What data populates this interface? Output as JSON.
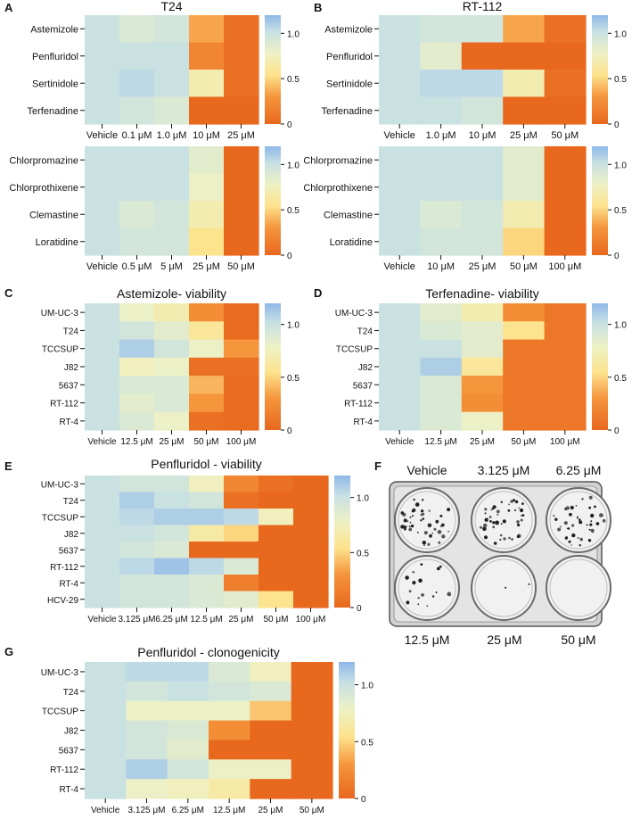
{
  "figure": {
    "panel_letters": [
      "A",
      "B",
      "C",
      "D",
      "E",
      "F",
      "G"
    ]
  },
  "colorscale": {
    "stops": [
      "#e8681e",
      "#f5953c",
      "#fde28c",
      "#eef1c4",
      "#c6e0e4",
      "#8fb8e8"
    ],
    "ticks_1": [
      "1.0",
      "0.5",
      "0"
    ],
    "ticks_2": [
      "1.0",
      "0.5",
      "0"
    ]
  },
  "photo_panel": {
    "labels_top": [
      "Vehicle",
      "3.125 μM",
      "6.25 μM"
    ],
    "labels_bottom": [
      "12.5 μM",
      "25 μM",
      "50 μM"
    ],
    "colony_density": [
      1.0,
      0.95,
      0.9,
      0.35,
      0.05,
      0.0
    ]
  },
  "chart_data": [
    {
      "panel": "A",
      "type": "heatmap",
      "title": "T24",
      "rows": [
        "Astemizole",
        "Penfluridol",
        "Sertinidole",
        "Terfenadine"
      ],
      "columns": [
        "Vehicle",
        "0.1 μM",
        "1.0 μM",
        "10 μM",
        "25 μM"
      ],
      "values": [
        [
          1.0,
          0.9,
          0.95,
          0.35,
          0.05
        ],
        [
          1.0,
          1.0,
          1.0,
          0.2,
          0.05
        ],
        [
          1.0,
          1.05,
          1.0,
          0.7,
          0.05
        ],
        [
          1.0,
          0.95,
          0.9,
          0.0,
          0.0
        ]
      ],
      "zlim": [
        0,
        1.2
      ],
      "colorbar_ticks": [
        "1.0",
        "0.5",
        "0"
      ]
    },
    {
      "panel": "A2",
      "type": "heatmap",
      "title": "",
      "rows": [
        "Chlorpromazine",
        "Chlorprothixene",
        "Clemastine",
        "Loratidine"
      ],
      "columns": [
        "Vehicle",
        "0.5 μM",
        "5 μM",
        "25 μM",
        "50 μM"
      ],
      "values": [
        [
          1.0,
          1.0,
          1.0,
          0.85,
          0.0
        ],
        [
          1.0,
          1.0,
          1.0,
          0.8,
          0.0
        ],
        [
          1.0,
          0.9,
          0.95,
          0.7,
          0.0
        ],
        [
          1.0,
          0.95,
          0.95,
          0.55,
          0.0
        ]
      ],
      "zlim": [
        0,
        1.2
      ],
      "colorbar_ticks": [
        "1.0",
        "0.5",
        "0"
      ]
    },
    {
      "panel": "B",
      "type": "heatmap",
      "title": "RT-112",
      "rows": [
        "Astemizole",
        "Penfluridol",
        "Sertinidole",
        "Terfenadine"
      ],
      "columns": [
        "Vehicle",
        "1.0 μM",
        "10 μM",
        "25 μM",
        "50 μM"
      ],
      "values": [
        [
          1.0,
          0.95,
          0.95,
          0.35,
          0.05
        ],
        [
          1.0,
          0.85,
          0.0,
          0.0,
          0.0
        ],
        [
          1.0,
          1.05,
          1.05,
          0.7,
          0.05
        ],
        [
          1.0,
          1.0,
          0.95,
          0.0,
          0.0
        ]
      ],
      "zlim": [
        0,
        1.2
      ],
      "colorbar_ticks": [
        "1.0",
        "0.5",
        "0"
      ]
    },
    {
      "panel": "B2",
      "type": "heatmap",
      "title": "",
      "rows": [
        "Chlorpromazine",
        "Chlorprothixene",
        "Clemastine",
        "Loratidine"
      ],
      "columns": [
        "Vehicle",
        "10 μM",
        "25 μM",
        "50 μM",
        "100 μM"
      ],
      "values": [
        [
          1.0,
          1.0,
          1.0,
          0.85,
          0.0
        ],
        [
          1.0,
          1.0,
          1.0,
          0.85,
          0.0
        ],
        [
          1.0,
          0.9,
          0.95,
          0.7,
          0.0
        ],
        [
          1.0,
          0.95,
          0.95,
          0.5,
          0.0
        ]
      ],
      "zlim": [
        0,
        1.2
      ],
      "colorbar_ticks": [
        "1.0",
        "0.5",
        "0"
      ]
    },
    {
      "panel": "C",
      "type": "heatmap",
      "title": "Astemizole- viability",
      "rows": [
        "UM-UC-3",
        "T24",
        "TCCSUP",
        "J82",
        "5637",
        "RT-112",
        "RT-4"
      ],
      "columns": [
        "Vehicle",
        "12.5 μM",
        "25 μM",
        "50 μM",
        "100 μM"
      ],
      "values": [
        [
          1.0,
          0.8,
          0.7,
          0.25,
          0.02
        ],
        [
          1.0,
          0.95,
          0.85,
          0.6,
          0.02
        ],
        [
          1.0,
          1.1,
          0.95,
          0.8,
          0.3
        ],
        [
          1.0,
          0.75,
          0.8,
          0.05,
          0.05
        ],
        [
          1.0,
          0.9,
          0.9,
          0.4,
          0.02
        ],
        [
          1.0,
          0.85,
          0.9,
          0.3,
          0.02
        ],
        [
          1.0,
          0.9,
          0.8,
          0.05,
          0.02
        ]
      ],
      "zlim": [
        0,
        1.2
      ],
      "colorbar_ticks": [
        "1.0",
        "0.5",
        "0"
      ]
    },
    {
      "panel": "D",
      "type": "heatmap",
      "title": "Terfenadine- viability",
      "rows": [
        "UM-UC-3",
        "T24",
        "TCCSUP",
        "J82",
        "5637",
        "RT-112",
        "RT-4"
      ],
      "columns": [
        "Vehicle",
        "12.5 μM",
        "25 μM",
        "50 μM",
        "100 μM"
      ],
      "values": [
        [
          1.0,
          0.85,
          0.7,
          0.25,
          0.1
        ],
        [
          1.0,
          0.9,
          0.85,
          0.55,
          0.1
        ],
        [
          1.0,
          1.0,
          0.85,
          0.1,
          0.1
        ],
        [
          1.0,
          1.1,
          0.6,
          0.1,
          0.1
        ],
        [
          1.0,
          0.9,
          0.3,
          0.1,
          0.1
        ],
        [
          1.0,
          0.9,
          0.25,
          0.1,
          0.1
        ],
        [
          1.0,
          0.9,
          0.8,
          0.1,
          0.1
        ]
      ],
      "zlim": [
        0,
        1.2
      ],
      "colorbar_ticks": [
        "1.0",
        "0.5",
        "0"
      ]
    },
    {
      "panel": "E",
      "type": "heatmap",
      "title": "Penfluridol - viability",
      "rows": [
        "UM-UC-3",
        "T24",
        "TCCSUP",
        "J82",
        "5637",
        "RT-112",
        "RT-4",
        "HCV-29"
      ],
      "columns": [
        "Vehicle",
        "3.125 μM",
        "6.25 μM",
        "12.5 μM",
        "25 μM",
        "50 μM",
        "100 μM"
      ],
      "values": [
        [
          1.0,
          0.95,
          0.95,
          0.75,
          0.2,
          0.05,
          0.0
        ],
        [
          1.0,
          1.1,
          1.0,
          0.95,
          0.05,
          0.0,
          0.0
        ],
        [
          1.0,
          1.05,
          1.1,
          1.1,
          1.05,
          0.75,
          0.0
        ],
        [
          1.0,
          1.0,
          0.95,
          0.65,
          0.5,
          0.0,
          0.0
        ],
        [
          1.0,
          0.95,
          0.9,
          0.0,
          0.0,
          0.0,
          0.0
        ],
        [
          1.0,
          1.05,
          1.15,
          1.05,
          0.9,
          0.0,
          0.0
        ],
        [
          1.0,
          0.95,
          0.95,
          0.9,
          0.15,
          0.0,
          0.0
        ],
        [
          1.0,
          0.95,
          0.95,
          0.9,
          0.85,
          0.55,
          0.0
        ]
      ],
      "zlim": [
        0,
        1.2
      ],
      "colorbar_ticks": [
        "1.0",
        "0.5",
        "0"
      ]
    },
    {
      "panel": "G",
      "type": "heatmap",
      "title": "Penfluridol - clonogenicity",
      "rows": [
        "UM-UC-3",
        "T24",
        "TCCSUP",
        "J82",
        "5637",
        "RT-112",
        "RT-4"
      ],
      "columns": [
        "Vehicle",
        "3.125 μM",
        "6.25 μM",
        "12.5 μM",
        "25 μM",
        "50 μM"
      ],
      "values": [
        [
          1.0,
          1.05,
          1.05,
          0.9,
          0.75,
          0.0
        ],
        [
          1.0,
          0.95,
          1.0,
          0.95,
          0.9,
          0.0
        ],
        [
          1.0,
          0.8,
          0.8,
          0.8,
          0.45,
          0.0
        ],
        [
          1.0,
          0.95,
          0.9,
          0.25,
          0.0,
          0.0
        ],
        [
          1.0,
          0.95,
          0.85,
          0.0,
          0.0,
          0.0
        ],
        [
          1.0,
          1.1,
          0.95,
          0.8,
          0.8,
          0.0
        ],
        [
          1.0,
          0.8,
          0.75,
          0.65,
          0.0,
          0.0
        ]
      ],
      "zlim": [
        0,
        1.2
      ],
      "colorbar_ticks": [
        "1.0",
        "0.5",
        "0"
      ]
    }
  ]
}
